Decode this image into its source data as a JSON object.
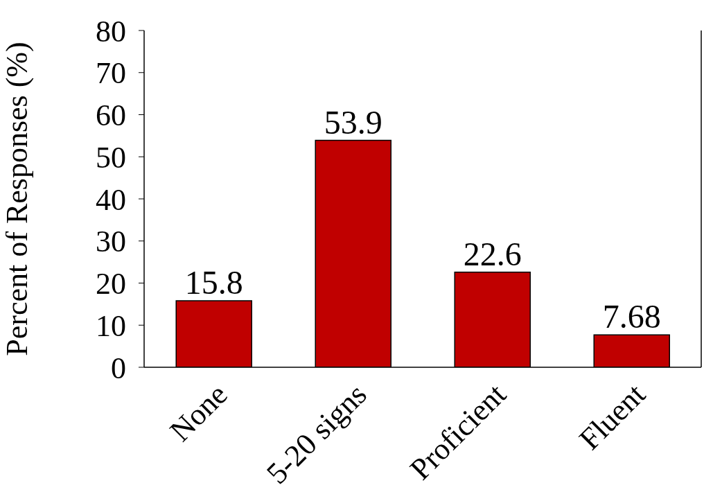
{
  "chart_data": {
    "type": "bar",
    "ylabel": "Percent of Responses (%)",
    "categories": [
      "None",
      "5-20 signs",
      "Proficient",
      "Fluent"
    ],
    "values": [
      15.8,
      53.9,
      22.6,
      7.68
    ],
    "color": "#c00000",
    "ylim": [
      0,
      80
    ],
    "yticks": [
      0,
      10,
      20,
      30,
      40,
      50,
      60,
      70,
      80
    ],
    "data_labels": true,
    "grid": false,
    "legend": false
  }
}
